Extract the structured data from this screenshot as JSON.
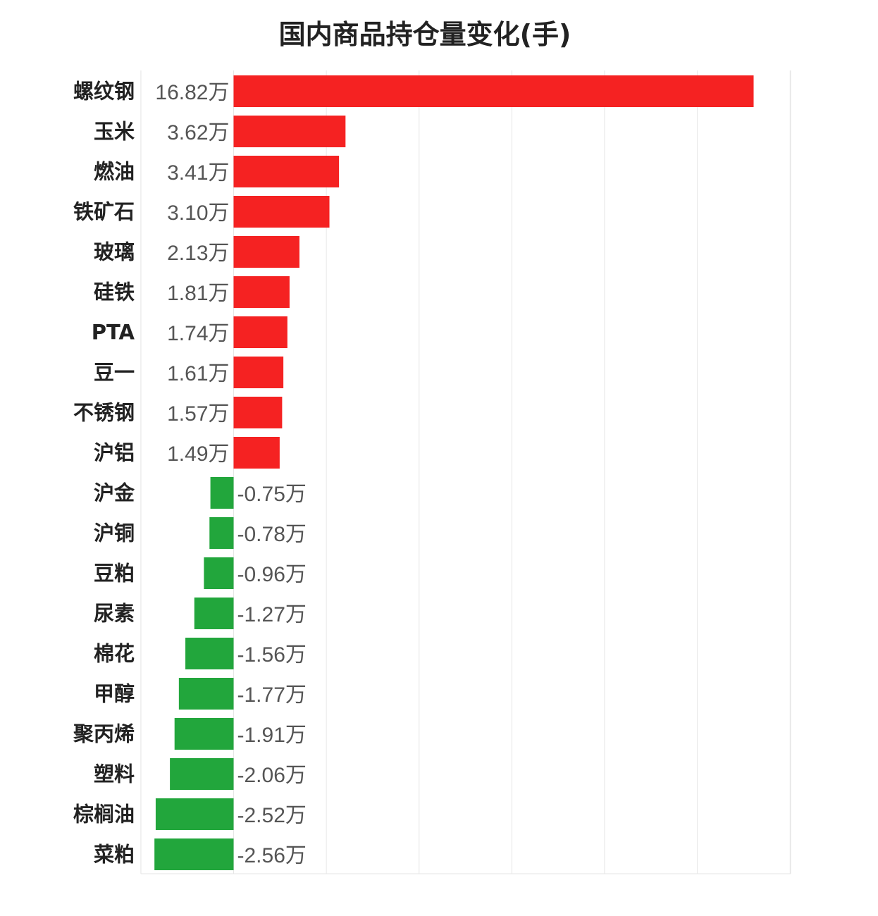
{
  "chart_data": {
    "type": "bar",
    "orientation": "horizontal",
    "title": "国内商品持仓量变化(手)",
    "unit_suffix": "万",
    "categories": [
      "螺纹钢",
      "玉米",
      "燃油",
      "铁矿石",
      "玻璃",
      "硅铁",
      "PTA",
      "豆一",
      "不锈钢",
      "沪铝",
      "沪金",
      "沪铜",
      "豆粕",
      "尿素",
      "棉花",
      "甲醇",
      "聚丙烯",
      "塑料",
      "棕榈油",
      "菜粕"
    ],
    "values": [
      16.82,
      3.62,
      3.41,
      3.1,
      2.13,
      1.81,
      1.74,
      1.61,
      1.57,
      1.49,
      -0.75,
      -0.78,
      -0.96,
      -1.27,
      -1.56,
      -1.77,
      -1.91,
      -2.06,
      -2.52,
      -2.56
    ],
    "value_labels": [
      "16.82万",
      "3.62万",
      "3.41万",
      "3.10万",
      "2.13万",
      "1.81万",
      "1.74万",
      "1.61万",
      "1.57万",
      "1.49万",
      "-0.75万",
      "-0.78万",
      "-0.96万",
      "-1.27万",
      "-1.56万",
      "-1.77万",
      "-1.91万",
      "-2.06万",
      "-2.52万",
      "-2.56万"
    ],
    "xlim": [
      -3,
      18
    ],
    "grid": true,
    "legend": "none",
    "colors": {
      "positive": "#f52222",
      "negative": "#22a63c",
      "grid": "#e6e6e6"
    }
  }
}
